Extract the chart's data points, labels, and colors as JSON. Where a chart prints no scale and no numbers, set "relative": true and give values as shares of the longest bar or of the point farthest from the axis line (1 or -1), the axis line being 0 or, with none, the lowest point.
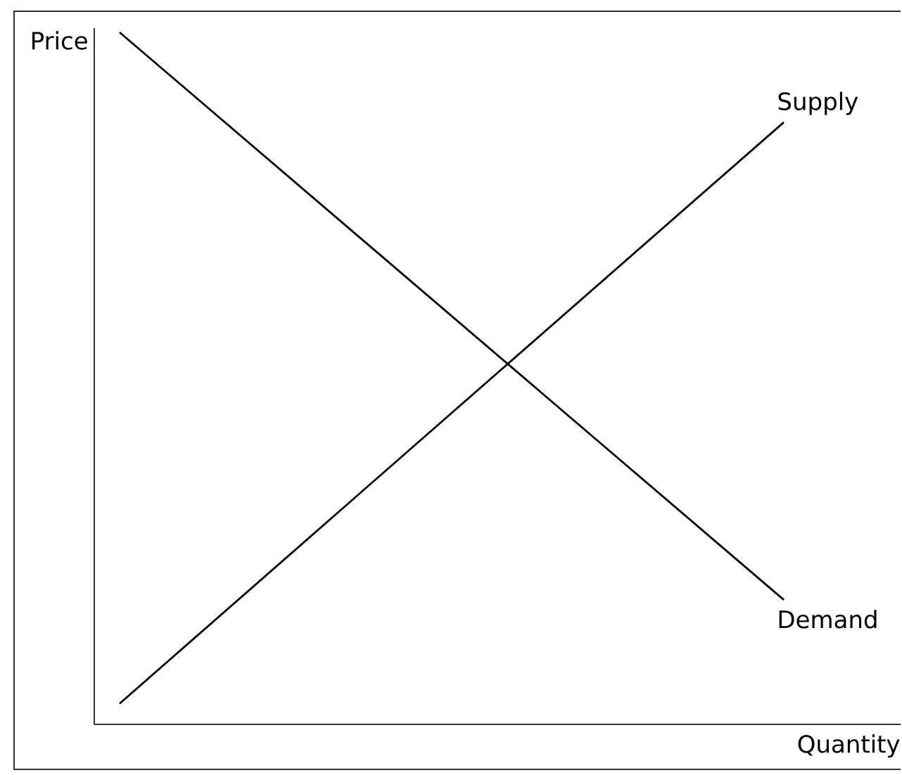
{
  "chart_data": {
    "type": "line",
    "xlabel": "Quantity",
    "ylabel": "Price",
    "categories": [
      null,
      null
    ],
    "series": [
      {
        "name": "Demand",
        "color": "#000000",
        "values": [
          1,
          0.18
        ]
      },
      {
        "name": "Supply",
        "color": "#000000",
        "values": [
          0.03,
          0.87
        ]
      }
    ],
    "relative": true,
    "tick_labels": false,
    "legend": false,
    "marker": "none",
    "line_style": "solid"
  }
}
